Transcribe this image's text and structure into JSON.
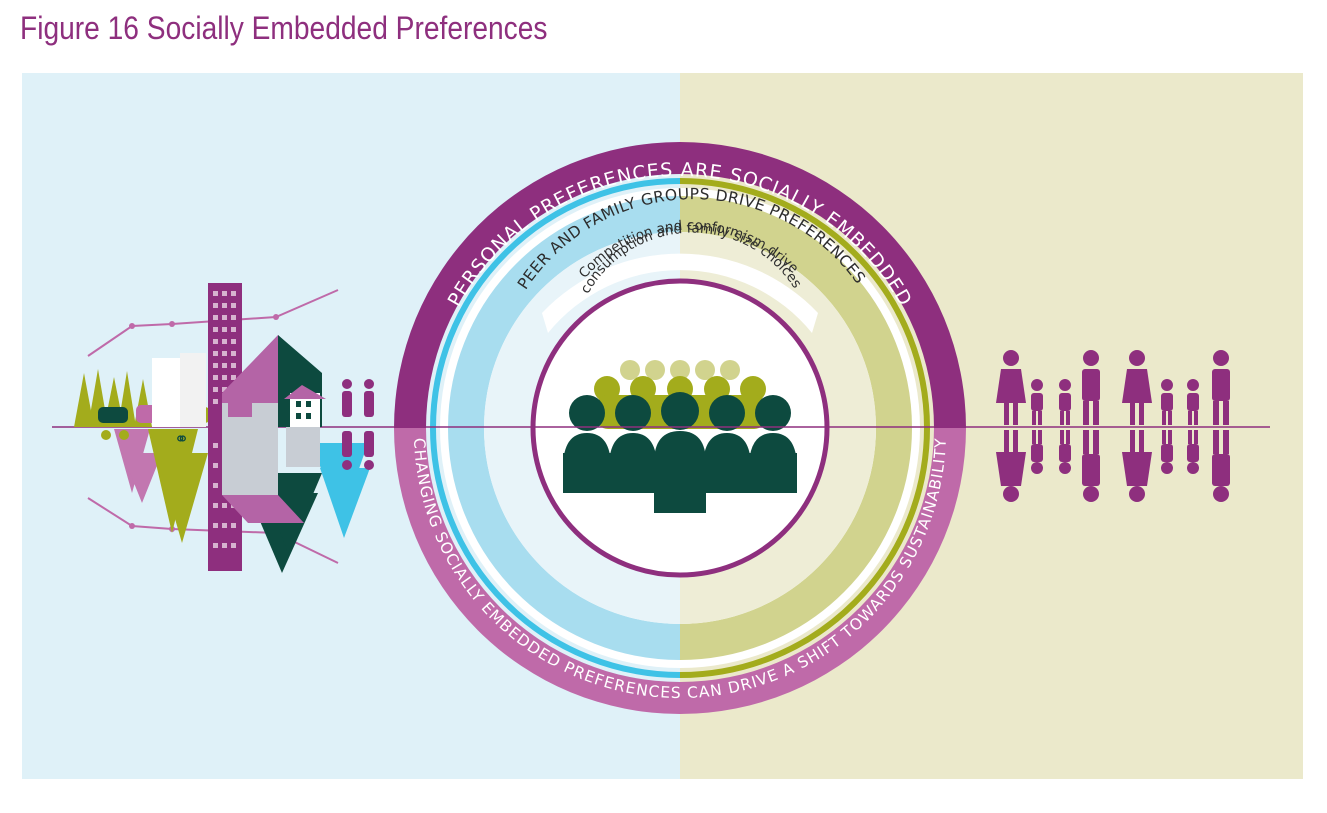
{
  "figure_title": "Figure 16 Socially Embedded Preferences",
  "rings": {
    "outer_top": "PERSONAL PREFERENCES ARE SOCIALLY EMBEDDED",
    "outer_bottom": "CHANGING SOCIALLY EMBEDDED PREFERENCES CAN DRIVE A SHIFT TOWARDS SUSTAINABILITY",
    "middle_top": "PEER AND FAMILY GROUPS DRIVE PREFERENCES",
    "inner_line1": "Competition and conformism drive",
    "inner_line2": "consumption and family size choices"
  },
  "colors": {
    "left_bg": "#dff1f8",
    "right_bg": "#ebe9cb",
    "purple": "#8e2f7e",
    "light_purple": "#bf6aa9",
    "cyan": "#3ec2e6",
    "light_blue": "#a8ddef",
    "olive": "#a3ac1c",
    "light_olive": "#d1d38e",
    "dark_green": "#0d4a3f"
  }
}
